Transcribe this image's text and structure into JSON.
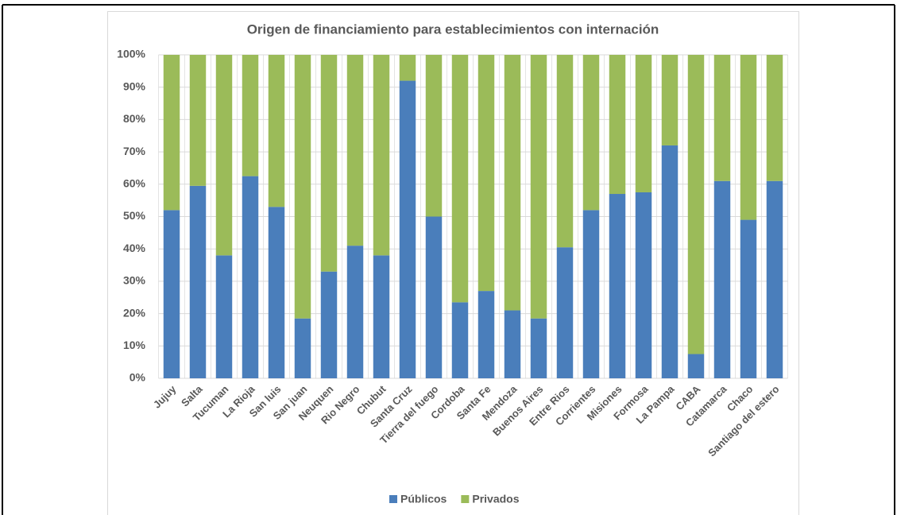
{
  "chart_data": {
    "type": "stacked_bar",
    "title": "Origen de financiamiento para establecimientos con internación",
    "categories": [
      "Jujuy",
      "Salta",
      "Tucuman",
      "La Rioja",
      "San luis",
      "San juan",
      "Neuquen",
      "Rio Negro",
      "Chubut",
      "Santa Cruz",
      "Tierra del fuego",
      "Cordoba",
      "Santa Fe",
      "Mendoza",
      "Buenos Aires",
      "Entre Rios",
      "Corrientes",
      "Misiones",
      "Formosa",
      "La Pampa",
      "CABA",
      "Catamarca",
      "Chaco",
      "Santiago del estero"
    ],
    "series": [
      {
        "name": "Públicos",
        "color": "#4a7ebb",
        "values": [
          52,
          59.5,
          38,
          62.5,
          53,
          18.5,
          33,
          41,
          38,
          92,
          50,
          23.5,
          27,
          21,
          18.5,
          40.5,
          52,
          57,
          57.5,
          72,
          7.5,
          61,
          49,
          61
        ]
      },
      {
        "name": "Privados",
        "color": "#9bbb59",
        "values": [
          48,
          40.5,
          62,
          37.5,
          47,
          81.5,
          67,
          59,
          62,
          8,
          50,
          76.5,
          73,
          79,
          81.5,
          59.5,
          48,
          43,
          42.5,
          28,
          92.5,
          39,
          51,
          39
        ]
      }
    ],
    "ylim": [
      0,
      100
    ],
    "yticks": [
      {
        "value": 0,
        "label": "0%"
      },
      {
        "value": 10,
        "label": "10%"
      },
      {
        "value": 20,
        "label": "20%"
      },
      {
        "value": 30,
        "label": "30%"
      },
      {
        "value": 40,
        "label": "40%"
      },
      {
        "value": 50,
        "label": "50%"
      },
      {
        "value": 60,
        "label": "60%"
      },
      {
        "value": 70,
        "label": "70%"
      },
      {
        "value": 80,
        "label": "80%"
      },
      {
        "value": 90,
        "label": "90%"
      },
      {
        "value": 100,
        "label": "100%"
      }
    ],
    "grid": true,
    "legend": "bottom"
  }
}
